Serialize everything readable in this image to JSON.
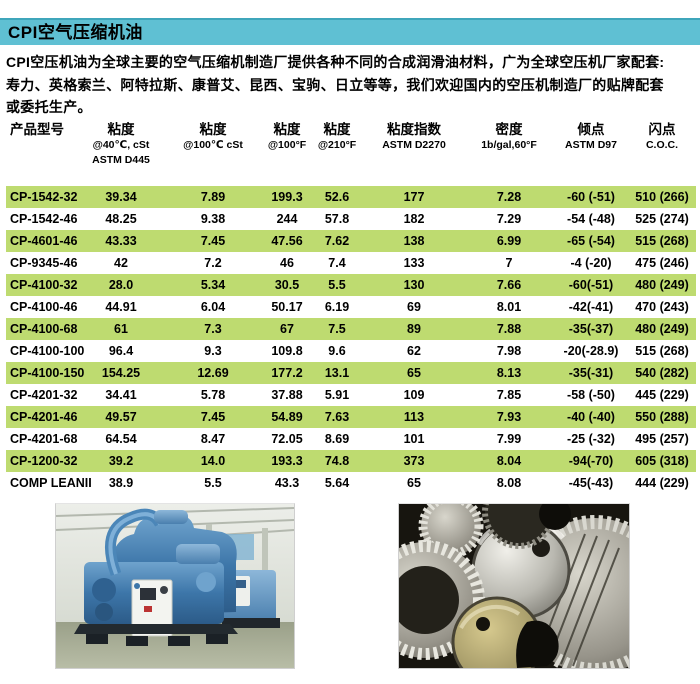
{
  "colors": {
    "accent_teal": "#5fc0d3",
    "accent_teal_dark": "#3fa6bb",
    "row_highlight_green": "#bedb70"
  },
  "header": {
    "title": "CPI空气压缩机油"
  },
  "intro": {
    "lines": [
      "CPI空压机油为全球主要的空气压缩机制造厂提供各种不同的合成润滑油材料，广为全球空压机厂家配套:",
      "寿力、英格索兰、阿特拉斯、康普艾、昆西、宝驹、日立等等，我们欢迎国内的空压机制造厂的贴牌配套",
      "或委托生产。"
    ]
  },
  "table": {
    "columns": [
      {
        "title": "产品型号",
        "sub1": "",
        "sub2": ""
      },
      {
        "title": "粘度",
        "sub1": "@40℃, cSt",
        "sub2": "ASTM D445"
      },
      {
        "title": "粘度",
        "sub1": "@100℃ cSt",
        "sub2": ""
      },
      {
        "title": "粘度",
        "sub1": "@100°F",
        "sub2": ""
      },
      {
        "title": "粘度",
        "sub1": "@210°F",
        "sub2": ""
      },
      {
        "title": "粘度指数",
        "sub1": "ASTM D2270",
        "sub2": ""
      },
      {
        "title": "密度",
        "sub1": "1b/gal,60°F",
        "sub2": ""
      },
      {
        "title": "倾点",
        "sub1": "ASTM D97",
        "sub2": ""
      },
      {
        "title": "闪点",
        "sub1": "C.O.C.",
        "sub2": ""
      }
    ],
    "rows": [
      {
        "model": "CP-1542-32",
        "values": [
          "39.34",
          "7.89",
          "199.3",
          "52.6",
          "177",
          "7.28",
          "-60 (-51)",
          "510 (266)"
        ],
        "highlight": true
      },
      {
        "model": "CP-1542-46",
        "values": [
          "48.25",
          "9.38",
          "244",
          "57.8",
          "182",
          "7.29",
          "-54 (-48)",
          "525 (274)"
        ],
        "highlight": false
      },
      {
        "model": "CP-4601-46",
        "values": [
          "43.33",
          "7.45",
          "47.56",
          "7.62",
          "138",
          "6.99",
          "-65 (-54)",
          "515 (268)"
        ],
        "highlight": true
      },
      {
        "model": "CP-9345-46",
        "values": [
          "42",
          "7.2",
          "46",
          "7.4",
          "133",
          "7",
          "-4 (-20)",
          "475 (246)"
        ],
        "highlight": false
      },
      {
        "model": "CP-4100-32",
        "values": [
          "28.0",
          "5.34",
          "30.5",
          "5.5",
          "130",
          "7.66",
          "-60(-51)",
          "480 (249)"
        ],
        "highlight": true
      },
      {
        "model": "CP-4100-46",
        "values": [
          "44.91",
          "6.04",
          "50.17",
          "6.19",
          "69",
          "8.01",
          "-42(-41)",
          "470 (243)"
        ],
        "highlight": false
      },
      {
        "model": "CP-4100-68",
        "values": [
          "61",
          "7.3",
          "67",
          "7.5",
          "89",
          "7.88",
          "-35(-37)",
          "480 (249)"
        ],
        "highlight": true
      },
      {
        "model": "CP-4100-100",
        "values": [
          "96.4",
          "9.3",
          "109.8",
          "9.6",
          "62",
          "7.98",
          "-20(-28.9)",
          "515 (268)"
        ],
        "highlight": false
      },
      {
        "model": "CP-4100-150",
        "values": [
          "154.25",
          "12.69",
          "177.2",
          "13.1",
          "65",
          "8.13",
          "-35(-31)",
          "540 (282)"
        ],
        "highlight": true
      },
      {
        "model": "CP-4201-32",
        "values": [
          "34.41",
          "5.78",
          "37.88",
          "5.91",
          "109",
          "7.85",
          "-58 (-50)",
          "445 (229)"
        ],
        "highlight": false
      },
      {
        "model": "CP-4201-46",
        "values": [
          "49.57",
          "7.45",
          "54.89",
          "7.63",
          "113",
          "7.93",
          "-40 (-40)",
          "550 (288)"
        ],
        "highlight": true
      },
      {
        "model": "CP-4201-68",
        "values": [
          "64.54",
          "8.47",
          "72.05",
          "8.69",
          "101",
          "7.99",
          "-25 (-32)",
          "495 (257)"
        ],
        "highlight": false
      },
      {
        "model": "CP-1200-32",
        "values": [
          "39.2",
          "14.0",
          "193.3",
          "74.8",
          "373",
          "8.04",
          "-94(-70)",
          "605 (318)"
        ],
        "highlight": true
      },
      {
        "model": "COMP LEANII",
        "values": [
          "38.9",
          "5.5",
          "43.3",
          "5.64",
          "65",
          "8.08",
          "-45(-43)",
          "444 (229)"
        ],
        "highlight": false
      }
    ]
  }
}
